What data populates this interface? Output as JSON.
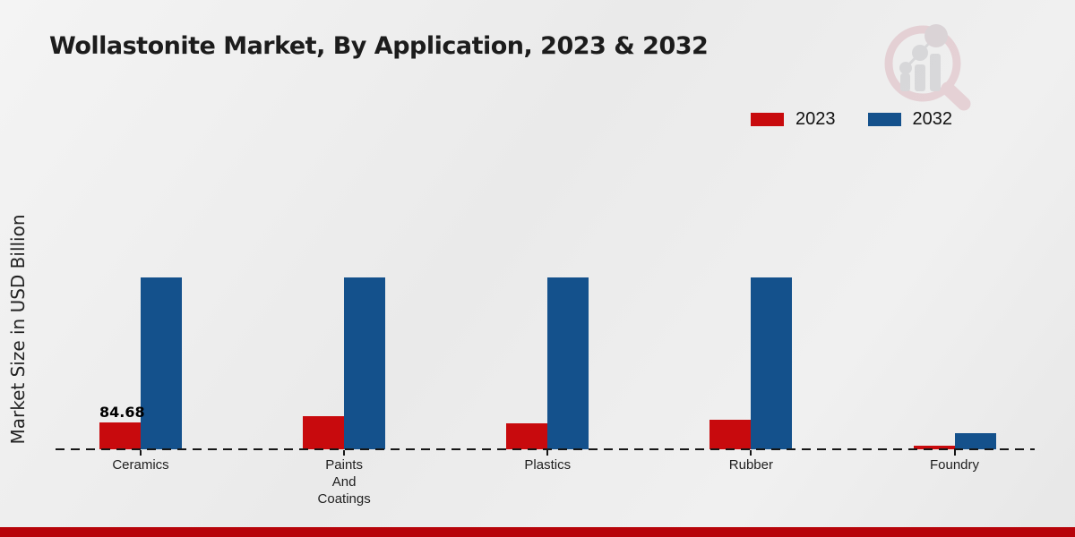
{
  "page": {
    "title": "Wollastonite Market, By Application, 2023 & 2032",
    "y_axis_label": "Market Size in USD Billion",
    "footer_color": "#b7040a",
    "axis_color": "#161616"
  },
  "legend": {
    "items": [
      {
        "label": "2023",
        "color": "#c80a0d"
      },
      {
        "label": "2032",
        "color": "#14518c"
      }
    ]
  },
  "watermark": {
    "icon": "magnifier-bar-chart-logo"
  },
  "chart_data": {
    "type": "bar",
    "title": "Wollastonite Market, By Application, 2023 & 2032",
    "xlabel": "",
    "ylabel": "Market Size in USD Billion",
    "categories": [
      "Ceramics",
      "Paints\nAnd\nCoatings",
      "Plastics",
      "Rubber",
      "Foundry"
    ],
    "series": [
      {
        "name": "2023",
        "color": "#c80a0d",
        "values": [
          84.68,
          104,
          82,
          93,
          12
        ],
        "value_labels": [
          "84.68",
          "",
          "",
          "",
          ""
        ]
      },
      {
        "name": "2032",
        "color": "#14518c",
        "values": [
          541,
          541,
          541,
          541,
          51
        ],
        "value_labels": [
          "",
          "",
          "",
          "",
          ""
        ]
      }
    ],
    "ylim": [
      0,
      595
    ],
    "grid": false,
    "y_ticks_shown": false,
    "legend_position": "top-right",
    "baseline_style": "dashed"
  }
}
